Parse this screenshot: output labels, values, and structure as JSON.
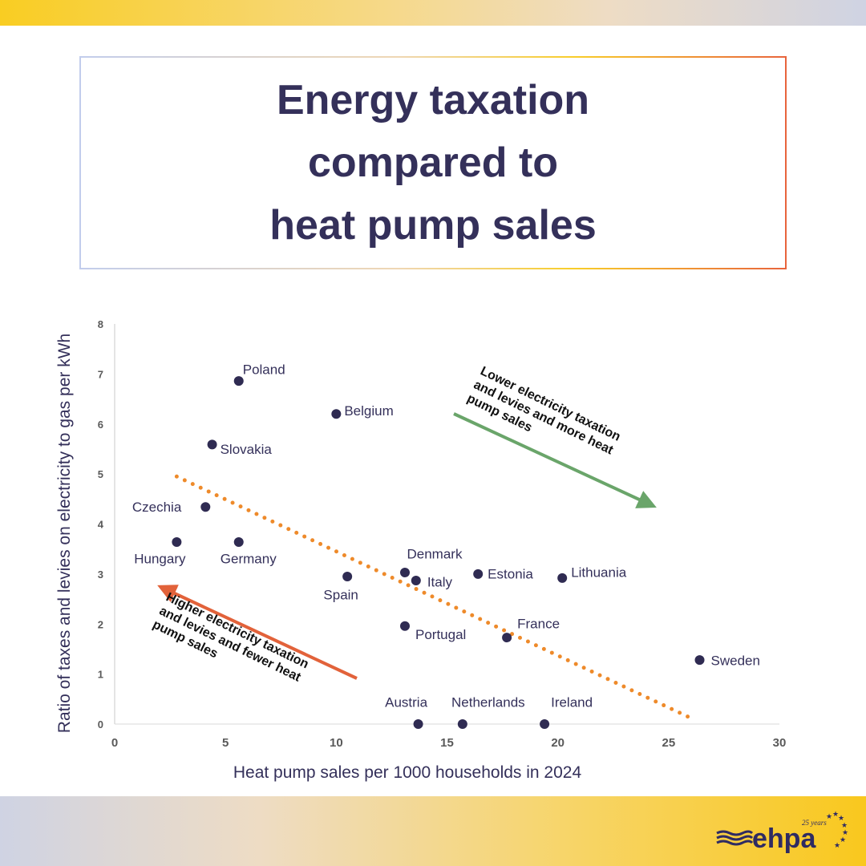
{
  "title": "Energy taxation\ncompared to\nheat pump sales",
  "chart_data": {
    "type": "scatter",
    "xlabel": "Heat pump sales per 1000 households in 2024",
    "ylabel": "Ratio of taxes and levies on electricity to gas per kWh",
    "xlim": [
      0,
      30
    ],
    "ylim": [
      0,
      8
    ],
    "xticks": [
      0,
      5,
      10,
      15,
      20,
      25,
      30
    ],
    "yticks": [
      0,
      1,
      2,
      3,
      4,
      5,
      6,
      7,
      8
    ],
    "grid": false,
    "points": [
      {
        "label": "Poland",
        "x": 5.6,
        "y": 6.86
      },
      {
        "label": "Belgium",
        "x": 10.0,
        "y": 6.2
      },
      {
        "label": "Slovakia",
        "x": 4.4,
        "y": 5.59
      },
      {
        "label": "Czechia",
        "x": 4.1,
        "y": 4.34
      },
      {
        "label": "Hungary",
        "x": 2.8,
        "y": 3.64
      },
      {
        "label": "Germany",
        "x": 5.6,
        "y": 3.64
      },
      {
        "label": "Spain",
        "x": 10.5,
        "y": 2.95
      },
      {
        "label": "Denmark",
        "x": 13.1,
        "y": 3.03
      },
      {
        "label": "Italy",
        "x": 13.6,
        "y": 2.87
      },
      {
        "label": "Estonia",
        "x": 16.4,
        "y": 3.0
      },
      {
        "label": "Lithuania",
        "x": 20.2,
        "y": 2.92
      },
      {
        "label": "Portugal",
        "x": 13.1,
        "y": 1.96
      },
      {
        "label": "France",
        "x": 17.7,
        "y": 1.73
      },
      {
        "label": "Sweden",
        "x": 26.4,
        "y": 1.28
      },
      {
        "label": "Austria",
        "x": 13.7,
        "y": 0
      },
      {
        "label": "Netherlands",
        "x": 15.7,
        "y": 0
      },
      {
        "label": "Ireland",
        "x": 19.4,
        "y": 0
      }
    ],
    "trendline": {
      "style": "dotted",
      "x": [
        2.8,
        26.2
      ],
      "y": [
        4.95,
        0.08
      ]
    },
    "annotations": [
      {
        "lines": [
          "Lower electricity taxation",
          "and levies and more heat",
          "pump sales"
        ],
        "color": "#6aa56a",
        "direction": "down-right"
      },
      {
        "lines": [
          "Higher electricity taxation",
          "and levies and fewer heat",
          "pump sales"
        ],
        "color": "#e2623a",
        "direction": "up-left"
      }
    ],
    "colors": {
      "point": "#2f2b52",
      "trend": "#ee8a2a",
      "text": "#34305a"
    }
  },
  "logo": {
    "text": "ehpa",
    "tagline": "25 years"
  }
}
